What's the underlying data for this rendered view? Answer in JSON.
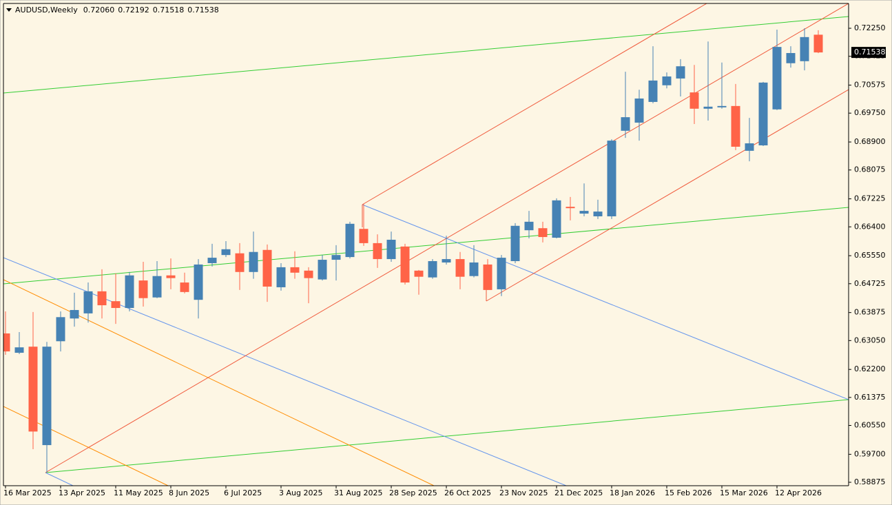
{
  "chart_data": {
    "type": "candlestick",
    "title": "AUDUSD,Weekly",
    "ohlc_labels": [
      "0.72060",
      "0.72192",
      "0.71518",
      "0.71538"
    ],
    "categories": [
      "16 Mar 2025",
      null,
      null,
      null,
      "13 Apr 2025",
      null,
      null,
      null,
      "11 May 2025",
      null,
      null,
      null,
      "8 Jun 2025",
      null,
      null,
      null,
      "6 Jul 2025",
      null,
      null,
      null,
      "3 Aug 2025",
      null,
      null,
      null,
      "31 Aug 2025",
      null,
      null,
      null,
      "28 Sep 2025",
      null,
      null,
      null,
      "26 Oct 2025",
      null,
      null,
      null,
      "23 Nov 2025",
      null,
      null,
      null,
      "21 Dec 2025",
      null,
      null,
      null,
      "18 Jan 2026",
      null,
      null,
      null,
      "15 Feb 2026",
      null,
      null,
      null,
      "15 Mar 2026",
      null,
      null,
      null,
      "12 Apr 2026",
      null,
      null,
      null
    ],
    "open": [
      0.6326,
      0.6269,
      0.6287,
      0.5997,
      0.6303,
      0.637,
      0.6385,
      0.645,
      0.6421,
      0.6401,
      0.6482,
      0.6432,
      0.6497,
      0.6476,
      0.6425,
      0.6533,
      0.6557,
      0.6562,
      0.6507,
      0.6572,
      0.6462,
      0.6521,
      0.6511,
      0.6485,
      0.6543,
      0.6551,
      0.6634,
      0.6592,
      0.6545,
      0.6582,
      0.6511,
      0.6491,
      0.6535,
      0.6545,
      0.6495,
      0.6529,
      0.6456,
      0.6539,
      0.663,
      0.6636,
      0.6608,
      0.6699,
      0.6679,
      0.6671,
      0.6671,
      0.6923,
      0.6947,
      0.7008,
      0.7057,
      0.7077,
      0.7036,
      0.6988,
      0.6992,
      0.6996,
      0.6864,
      0.688,
      0.6986,
      0.7122,
      0.7128,
      0.7206
    ],
    "high": [
      0.6391,
      0.633,
      0.6389,
      0.6301,
      0.6391,
      0.6446,
      0.6476,
      0.6515,
      0.6503,
      0.6507,
      0.6537,
      0.6539,
      0.6547,
      0.6505,
      0.6545,
      0.659,
      0.6598,
      0.6592,
      0.6626,
      0.6588,
      0.6533,
      0.6568,
      0.6521,
      0.6557,
      0.6586,
      0.6655,
      0.6707,
      0.6618,
      0.6626,
      0.659,
      0.6513,
      0.6545,
      0.6614,
      0.6566,
      0.6586,
      0.6545,
      0.6557,
      0.6651,
      0.6687,
      0.6655,
      0.6724,
      0.6728,
      0.6768,
      0.672,
      0.6898,
      0.7097,
      0.7044,
      0.7172,
      0.7095,
      0.7134,
      0.7117,
      0.7186,
      0.7124,
      0.7061,
      0.6961,
      0.7067,
      0.7221,
      0.7172,
      0.7225,
      0.72192
    ],
    "low": [
      0.6263,
      0.6265,
      0.5985,
      0.5916,
      0.6273,
      0.6346,
      0.6358,
      0.637,
      0.6354,
      0.6391,
      0.6405,
      0.643,
      0.6456,
      0.6444,
      0.637,
      0.6523,
      0.6551,
      0.6454,
      0.6487,
      0.6419,
      0.6452,
      0.6487,
      0.6415,
      0.6482,
      0.6482,
      0.6547,
      0.6584,
      0.6519,
      0.6537,
      0.647,
      0.644,
      0.6487,
      0.6529,
      0.6456,
      0.6491,
      0.6454,
      0.6436,
      0.6533,
      0.6606,
      0.6594,
      0.6606,
      0.6659,
      0.6671,
      0.6663,
      0.6663,
      0.6902,
      0.6894,
      0.7004,
      0.7048,
      0.7024,
      0.6943,
      0.6953,
      0.6988,
      0.6866,
      0.6833,
      0.6878,
      0.6984,
      0.7109,
      0.7101,
      0.71518
    ],
    "close": [
      0.6273,
      0.6285,
      0.6037,
      0.6287,
      0.6374,
      0.6395,
      0.645,
      0.6409,
      0.6401,
      0.6497,
      0.643,
      0.6495,
      0.6489,
      0.6448,
      0.6529,
      0.6549,
      0.6574,
      0.6507,
      0.6566,
      0.6464,
      0.6521,
      0.6505,
      0.6489,
      0.6543,
      0.6557,
      0.6649,
      0.6592,
      0.6545,
      0.6602,
      0.6476,
      0.6493,
      0.6539,
      0.6545,
      0.6493,
      0.6535,
      0.6454,
      0.6549,
      0.6643,
      0.6655,
      0.661,
      0.6718,
      0.6695,
      0.6687,
      0.6685,
      0.6894,
      0.6963,
      0.7018,
      0.7071,
      0.7083,
      0.7113,
      0.6988,
      0.6994,
      0.6996,
      0.6876,
      0.6886,
      0.7065,
      0.717,
      0.7152,
      0.7199,
      0.71538
    ],
    "up_color": "#4682b4",
    "down_color": "#ff6347",
    "ylim": [
      0.58774,
      0.72981
    ],
    "yticks": [
      {
        "value": 0.7225,
        "label": "0.72250"
      },
      {
        "value": 0.71425,
        "label": "0.71425"
      },
      {
        "value": 0.70575,
        "label": "0.70575"
      },
      {
        "value": 0.6975,
        "label": "0.69750"
      },
      {
        "value": 0.689,
        "label": "0.68900"
      },
      {
        "value": 0.68075,
        "label": "0.68075"
      },
      {
        "value": 0.67225,
        "label": "0.67225"
      },
      {
        "value": 0.664,
        "label": "0.66400"
      },
      {
        "value": 0.6555,
        "label": "0.65550"
      },
      {
        "value": 0.64725,
        "label": "0.64725"
      },
      {
        "value": 0.63875,
        "label": "0.63875"
      },
      {
        "value": 0.6305,
        "label": "0.63050"
      },
      {
        "value": 0.622,
        "label": "0.62200"
      },
      {
        "value": 0.61375,
        "label": "0.61375"
      },
      {
        "value": 0.6055,
        "label": "0.60550"
      },
      {
        "value": 0.597,
        "label": "0.59700"
      },
      {
        "value": 0.58875,
        "label": "0.58875"
      }
    ],
    "grid": false
  }
}
